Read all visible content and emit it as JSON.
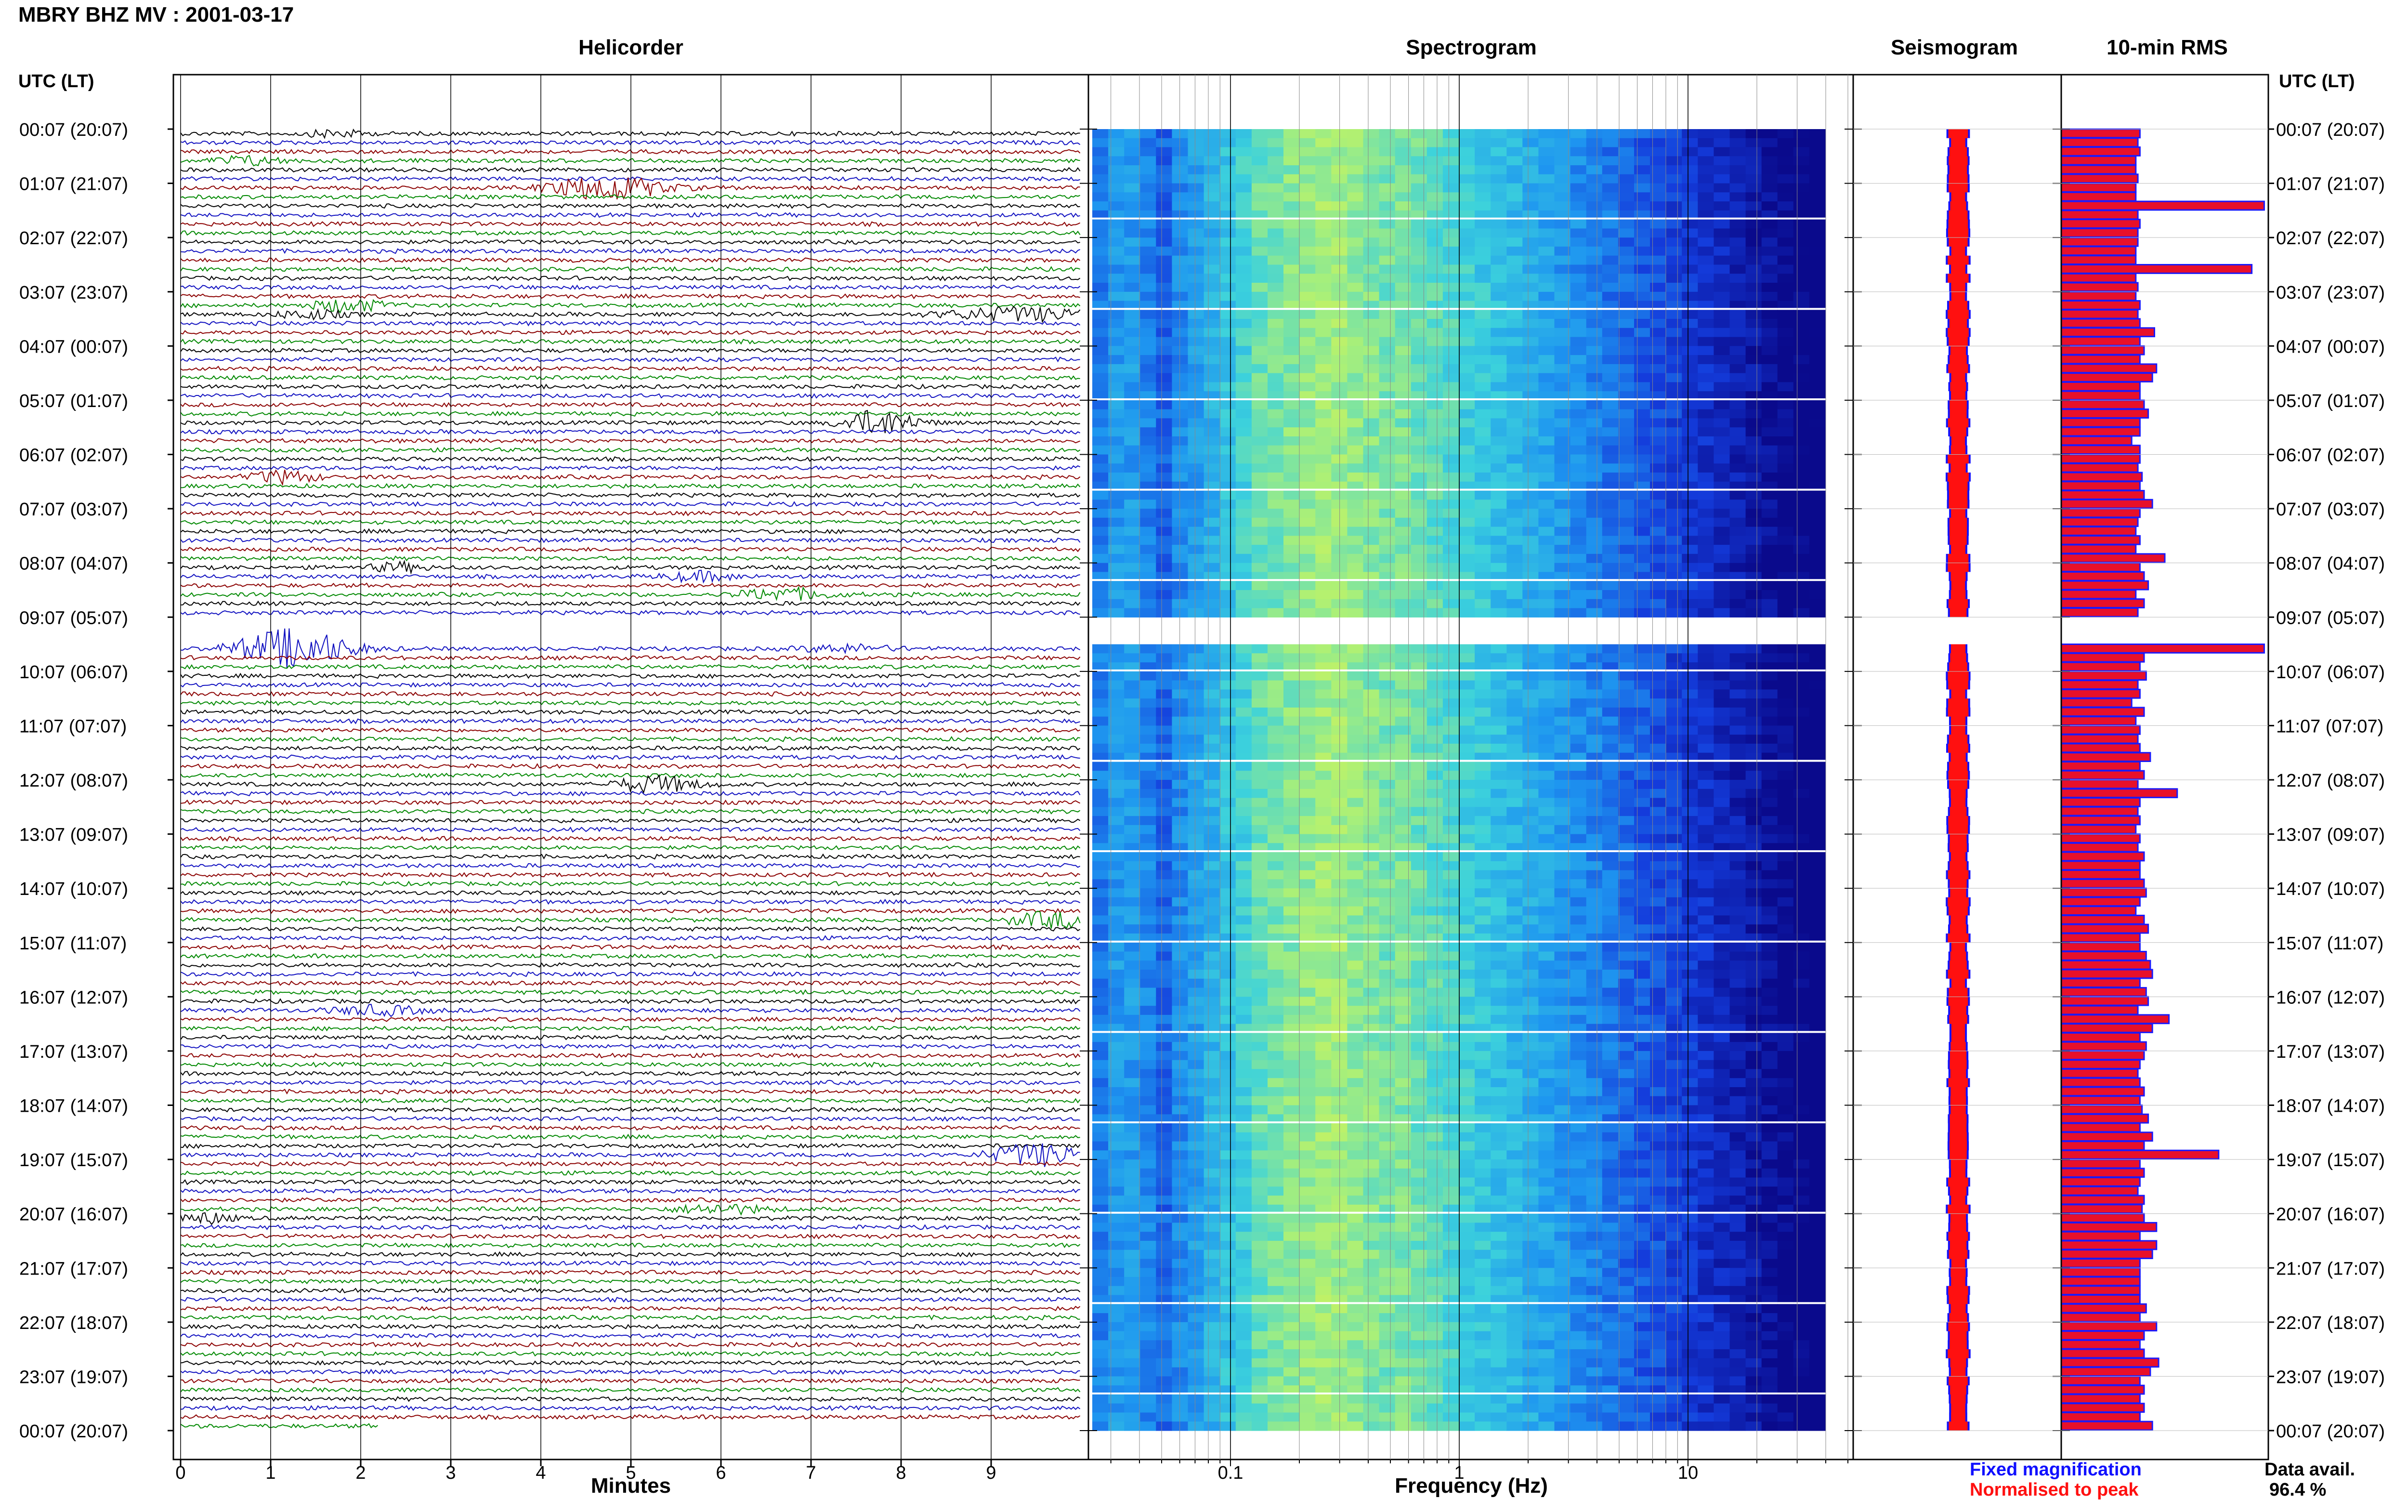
{
  "header": {
    "title": "MBRY BHZ MV : 2001-03-17",
    "utc_label": "UTC (LT)"
  },
  "panels": {
    "helicorder": "Helicorder",
    "spectrogram": "Spectrogram",
    "seismogram": "Seismogram",
    "rms": "10-min RMS"
  },
  "axes": {
    "helicorder_xlabel": "Minutes",
    "spectrogram_xlabel": "Frequency (Hz)",
    "minute_ticks": [
      "0",
      "1",
      "2",
      "3",
      "4",
      "5",
      "6",
      "7",
      "8",
      "9"
    ],
    "freq_ticks": [
      "0.1",
      "1",
      "10"
    ]
  },
  "time_labels": [
    "00:07 (20:07)",
    "01:07 (21:07)",
    "02:07 (22:07)",
    "03:07 (23:07)",
    "04:07 (00:07)",
    "05:07 (01:07)",
    "06:07 (02:07)",
    "07:07 (03:07)",
    "08:07 (04:07)",
    "09:07 (05:07)",
    "10:07 (06:07)",
    "11:07 (07:07)",
    "12:07 (08:07)",
    "13:07 (09:07)",
    "14:07 (10:07)",
    "15:07 (11:07)",
    "16:07 (12:07)",
    "17:07 (13:07)",
    "18:07 (14:07)",
    "19:07 (15:07)",
    "20:07 (16:07)",
    "21:07 (17:07)",
    "22:07 (18:07)",
    "23:07 (19:07)",
    "00:07 (20:07)"
  ],
  "legend": {
    "fixed": "Fixed magnification",
    "normalised": "Normalised to peak",
    "fixed_color": "#1010ff",
    "normalised_color": "#ff1010"
  },
  "availability": {
    "label": "Data avail.",
    "value": "96.4 %"
  },
  "colors": {
    "trace_cycle": [
      "#000000",
      "#1010c0",
      "#8b0000",
      "#008800"
    ],
    "rms_bar": "#e8102a",
    "rms_edge": "#1a1aff"
  },
  "chart_data": {
    "type": "helicorder",
    "rows": 144,
    "row_minutes": 10,
    "gap_rows": [
      54,
      55,
      56
    ],
    "events": [
      {
        "row": 0,
        "minute": 1.6,
        "amp": 0.8,
        "dur": 0.6
      },
      {
        "row": 3,
        "minute": 0.6,
        "amp": 1.0,
        "dur": 0.7
      },
      {
        "row": 6,
        "minute": 4.5,
        "amp": 2.8,
        "dur": 1.2
      },
      {
        "row": 19,
        "minute": 1.7,
        "amp": 1.4,
        "dur": 0.8
      },
      {
        "row": 20,
        "minute": 1.3,
        "amp": 1.0,
        "dur": 0.7
      },
      {
        "row": 20,
        "minute": 9.0,
        "amp": 1.5,
        "dur": 1.6
      },
      {
        "row": 32,
        "minute": 7.6,
        "amp": 2.8,
        "dur": 0.8
      },
      {
        "row": 38,
        "minute": 1.0,
        "amp": 1.4,
        "dur": 0.7
      },
      {
        "row": 48,
        "minute": 2.3,
        "amp": 1.0,
        "dur": 0.6
      },
      {
        "row": 49,
        "minute": 5.6,
        "amp": 1.0,
        "dur": 0.8
      },
      {
        "row": 51,
        "minute": 6.5,
        "amp": 1.3,
        "dur": 1.0
      },
      {
        "row": 57,
        "minute": 1.0,
        "amp": 4.5,
        "dur": 1.2
      },
      {
        "row": 57,
        "minute": 7.2,
        "amp": 0.8,
        "dur": 1.0
      },
      {
        "row": 72,
        "minute": 5.1,
        "amp": 1.8,
        "dur": 0.9
      },
      {
        "row": 87,
        "minute": 9.5,
        "amp": 1.8,
        "dur": 0.9
      },
      {
        "row": 97,
        "minute": 2.0,
        "amp": 1.0,
        "dur": 1.0
      },
      {
        "row": 113,
        "minute": 9.3,
        "amp": 2.5,
        "dur": 1.0
      },
      {
        "row": 120,
        "minute": 0.2,
        "amp": 1.2,
        "dur": 0.5
      },
      {
        "row": 119,
        "minute": 5.8,
        "amp": 1.0,
        "dur": 1.0
      }
    ],
    "rms_rows": [
      38,
      37,
      38,
      36,
      36,
      37,
      36,
      36,
      98,
      37,
      38,
      37,
      37,
      36,
      36,
      92,
      36,
      37,
      36,
      38,
      37,
      38,
      45,
      38,
      40,
      38,
      46,
      44,
      38,
      38,
      40,
      42,
      38,
      38,
      34,
      38,
      38,
      37,
      39,
      38,
      40,
      44,
      38,
      37,
      36,
      38,
      36,
      50,
      38,
      40,
      42,
      36,
      40,
      37,
      0,
      0,
      0,
      98,
      40,
      38,
      41,
      37,
      38,
      34,
      40,
      36,
      38,
      37,
      38,
      43,
      38,
      40,
      37,
      56,
      38,
      37,
      38,
      36,
      38,
      37,
      40,
      38,
      38,
      40,
      41,
      38,
      36,
      40,
      42,
      38,
      38,
      41,
      43,
      44,
      38,
      41,
      42,
      37,
      52,
      44,
      38,
      41,
      40,
      38,
      37,
      38,
      40,
      38,
      39,
      42,
      38,
      44,
      40,
      76,
      38,
      40,
      38,
      37,
      40,
      39,
      40,
      46,
      38,
      46,
      44,
      38,
      38,
      38,
      38,
      38,
      41,
      38,
      46,
      40,
      38,
      40,
      47,
      43,
      38,
      40,
      38,
      40,
      38,
      44
    ]
  }
}
